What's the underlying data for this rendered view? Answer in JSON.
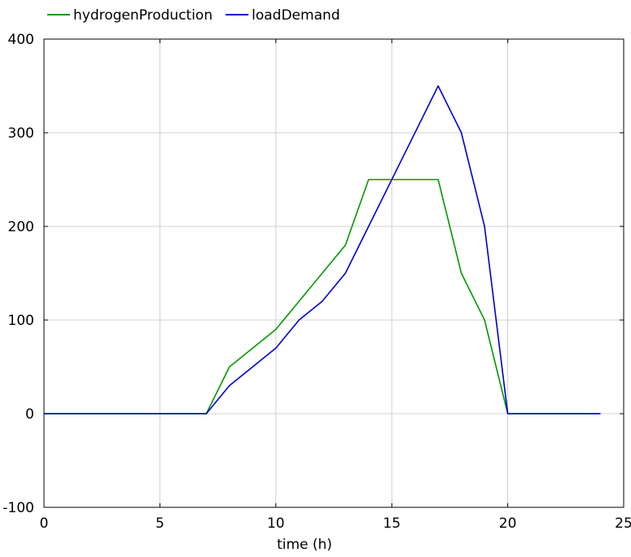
{
  "chart_data": {
    "type": "line",
    "title": "",
    "xlabel": "time (h)",
    "ylabel": "",
    "xlim": [
      0,
      25
    ],
    "ylim": [
      -100,
      400
    ],
    "xticks": [
      0,
      5,
      10,
      15,
      20,
      25
    ],
    "yticks": [
      -100,
      0,
      100,
      200,
      300,
      400
    ],
    "grid": true,
    "legend_position": "top-left",
    "series": [
      {
        "name": "hydrogenProduction",
        "color": "#009900",
        "x": [
          0,
          7,
          8,
          10,
          13,
          14,
          17,
          18,
          19,
          20,
          24
        ],
        "y": [
          0,
          0,
          50,
          90,
          180,
          250,
          250,
          150,
          100,
          0,
          0
        ]
      },
      {
        "name": "loadDemand",
        "color": "#0000cc",
        "x": [
          0,
          7,
          8,
          10,
          11,
          12,
          13,
          17,
          18,
          19,
          20,
          24
        ],
        "y": [
          0,
          0,
          30,
          70,
          100,
          120,
          150,
          350,
          300,
          200,
          0,
          0
        ]
      }
    ]
  }
}
